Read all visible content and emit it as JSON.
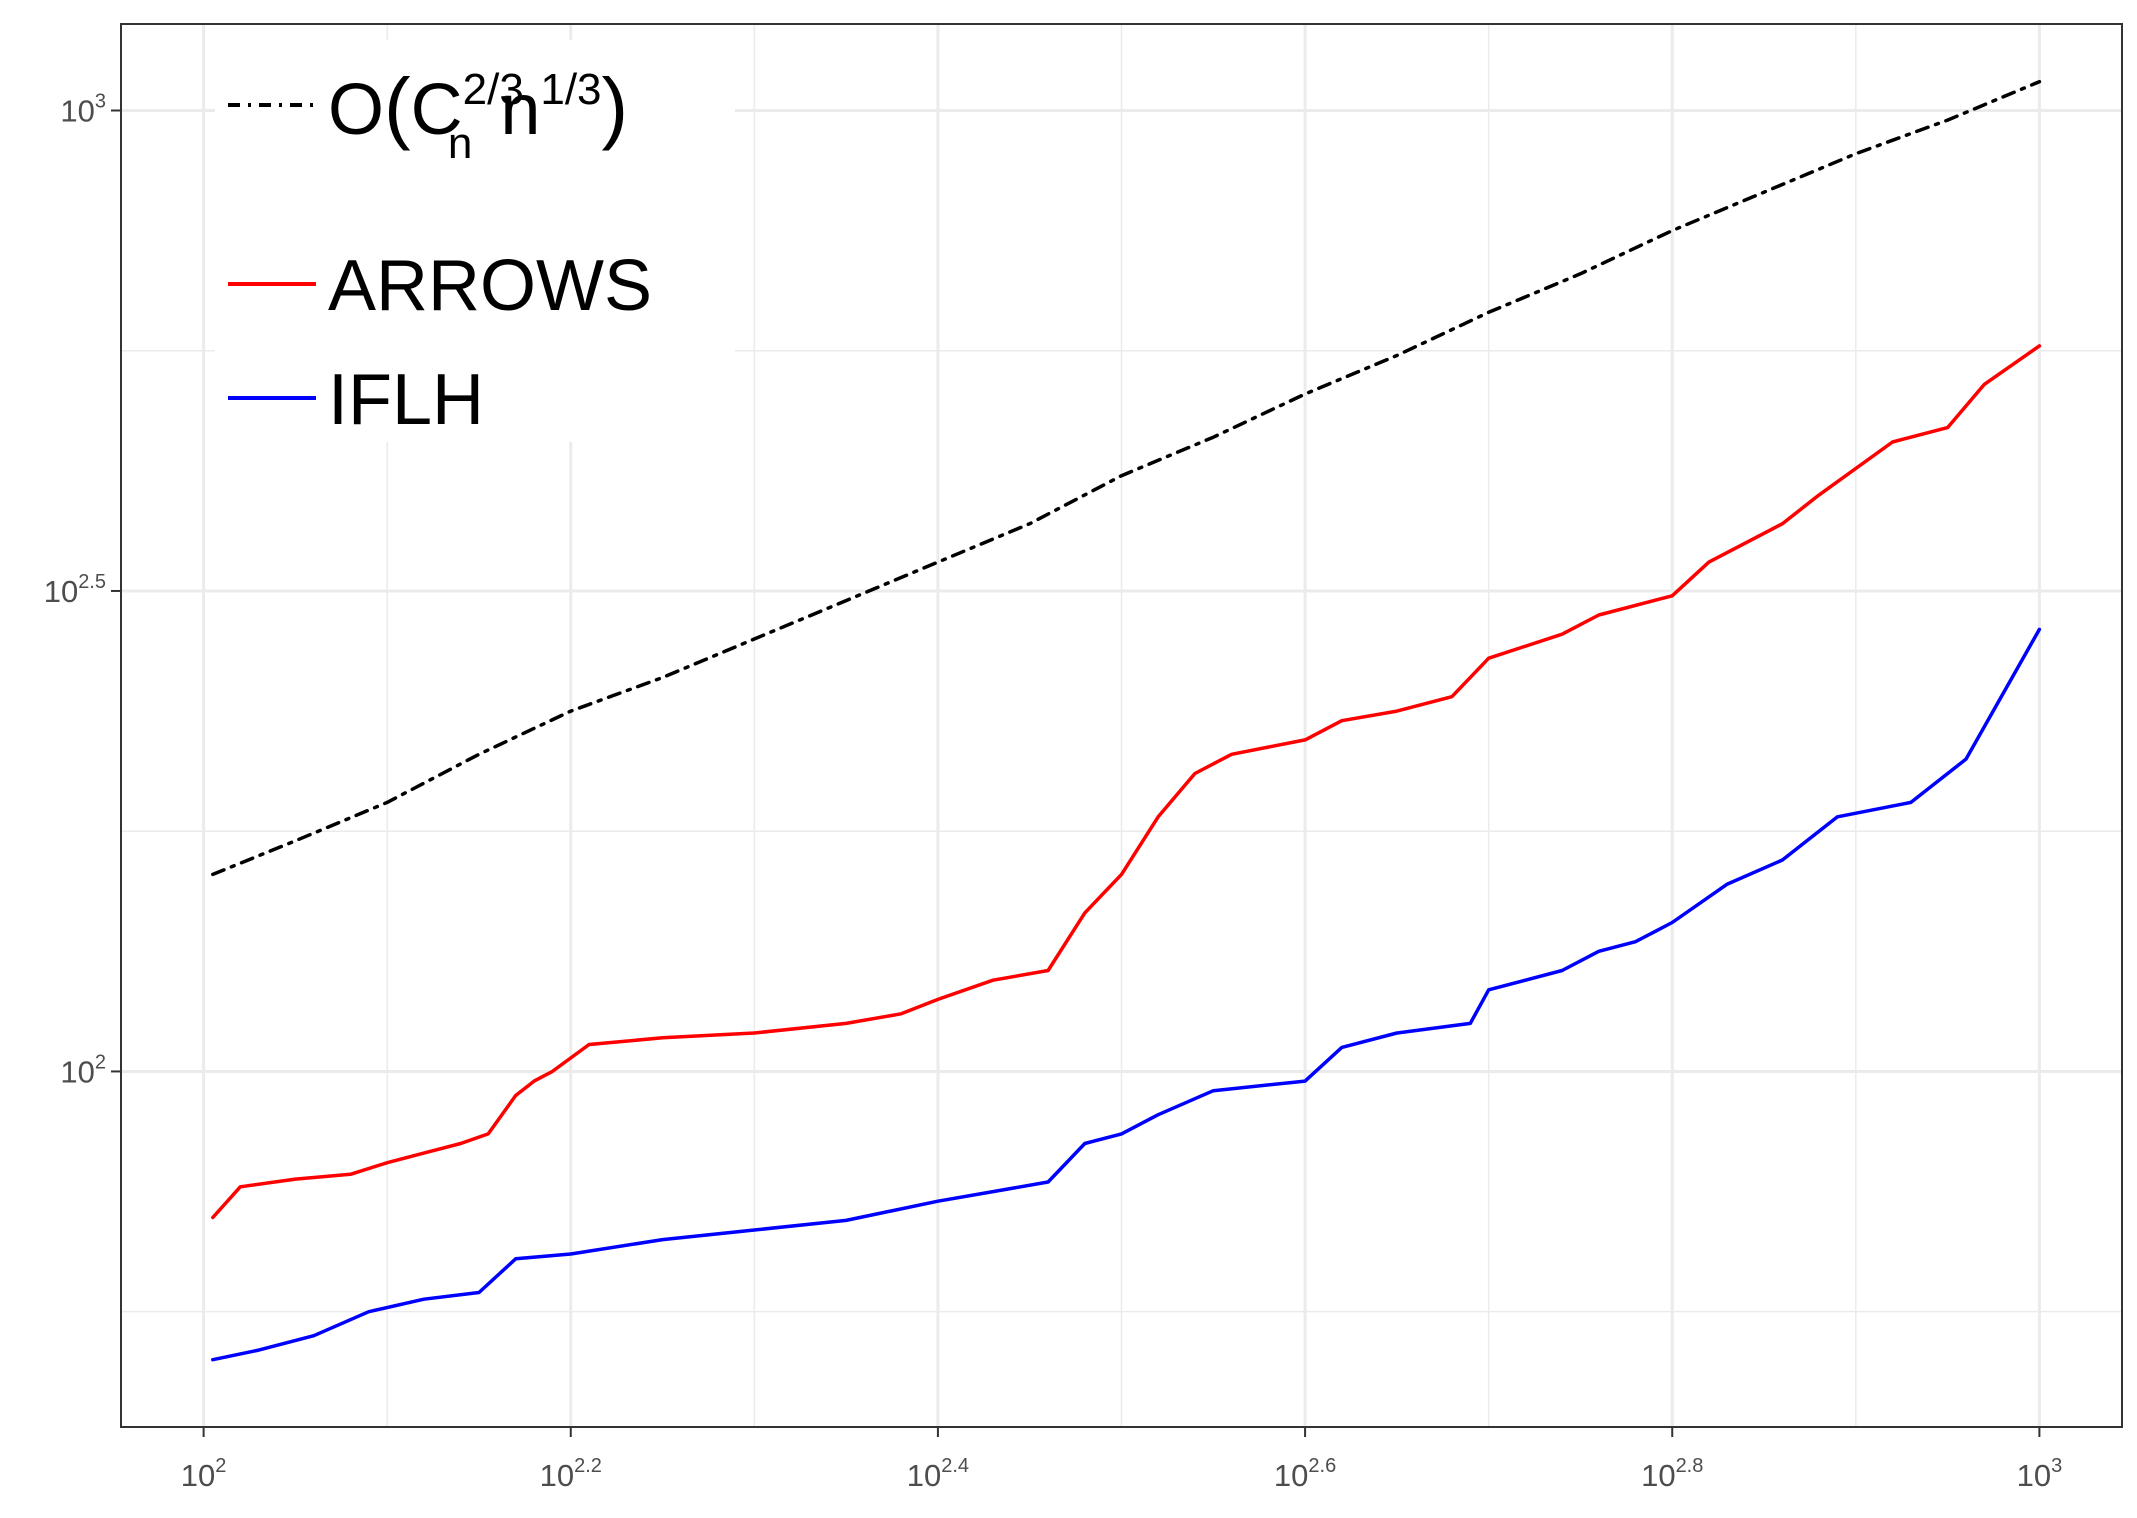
{
  "chart_data": {
    "type": "line",
    "x_scale": "log10",
    "y_scale": "log10",
    "xlim": [
      1.955,
      3.045
    ],
    "ylim": [
      1.63,
      3.09
    ],
    "grid": true,
    "legend_position": "top-left",
    "x_ticks": [
      {
        "value": 2.0,
        "base": "10",
        "exp": "2"
      },
      {
        "value": 2.2,
        "base": "10",
        "exp": "2.2"
      },
      {
        "value": 2.4,
        "base": "10",
        "exp": "2.4"
      },
      {
        "value": 2.6,
        "base": "10",
        "exp": "2.6"
      },
      {
        "value": 2.8,
        "base": "10",
        "exp": "2.8"
      },
      {
        "value": 3.0,
        "base": "10",
        "exp": "3"
      }
    ],
    "y_ticks": [
      {
        "value": 2.0,
        "base": "10",
        "exp": "2"
      },
      {
        "value": 2.5,
        "base": "10",
        "exp": "2.5"
      },
      {
        "value": 3.0,
        "base": "10",
        "exp": "3"
      }
    ],
    "series": [
      {
        "name": "O(C_n^(2/3) n^(1/3))",
        "legend_parts": {
          "main": "O",
          "c": "C",
          "sup": "2/3",
          "sub": "n",
          "n": "n",
          "n_sup": "1/3"
        },
        "color": "#000000",
        "dash": "dotdash",
        "x": [
          2.005,
          2.05,
          2.1,
          2.15,
          2.2,
          2.25,
          2.3,
          2.35,
          2.4,
          2.45,
          2.5,
          2.55,
          2.6,
          2.65,
          2.7,
          2.75,
          2.8,
          2.85,
          2.9,
          2.95,
          3.0
        ],
        "y": [
          2.205,
          2.24,
          2.28,
          2.33,
          2.375,
          2.41,
          2.45,
          2.49,
          2.53,
          2.57,
          2.62,
          2.66,
          2.705,
          2.745,
          2.79,
          2.83,
          2.875,
          2.915,
          2.955,
          2.99,
          3.03
        ]
      },
      {
        "name": "ARROWS",
        "color": "#ff0000",
        "dash": "solid",
        "x": [
          2.005,
          2.02,
          2.05,
          2.08,
          2.1,
          2.12,
          2.14,
          2.155,
          2.17,
          2.18,
          2.19,
          2.21,
          2.25,
          2.3,
          2.35,
          2.38,
          2.4,
          2.43,
          2.46,
          2.48,
          2.5,
          2.52,
          2.54,
          2.56,
          2.6,
          2.62,
          2.65,
          2.68,
          2.7,
          2.74,
          2.76,
          2.8,
          2.82,
          2.86,
          2.88,
          2.92,
          2.95,
          2.97,
          3.0
        ],
        "y": [
          1.848,
          1.88,
          1.888,
          1.893,
          1.905,
          1.915,
          1.925,
          1.935,
          1.975,
          1.99,
          2.0,
          2.028,
          2.035,
          2.04,
          2.05,
          2.06,
          2.075,
          2.095,
          2.105,
          2.165,
          2.205,
          2.265,
          2.31,
          2.33,
          2.345,
          2.365,
          2.375,
          2.39,
          2.43,
          2.455,
          2.475,
          2.495,
          2.53,
          2.57,
          2.6,
          2.655,
          2.67,
          2.715,
          2.755
        ]
      },
      {
        "name": "IFLH",
        "color": "#0000ff",
        "dash": "solid",
        "x": [
          2.005,
          2.03,
          2.06,
          2.09,
          2.12,
          2.15,
          2.17,
          2.2,
          2.25,
          2.3,
          2.35,
          2.4,
          2.43,
          2.46,
          2.48,
          2.5,
          2.52,
          2.55,
          2.6,
          2.62,
          2.65,
          2.69,
          2.7,
          2.74,
          2.76,
          2.78,
          2.8,
          2.83,
          2.86,
          2.87,
          2.89,
          2.93,
          2.96,
          3.0
        ],
        "y": [
          1.7,
          1.71,
          1.725,
          1.75,
          1.763,
          1.77,
          1.805,
          1.81,
          1.825,
          1.835,
          1.845,
          1.865,
          1.875,
          1.885,
          1.925,
          1.935,
          1.955,
          1.98,
          1.99,
          2.025,
          2.04,
          2.05,
          2.085,
          2.105,
          2.125,
          2.135,
          2.155,
          2.195,
          2.22,
          2.235,
          2.265,
          2.28,
          2.325,
          2.46
        ]
      }
    ]
  }
}
